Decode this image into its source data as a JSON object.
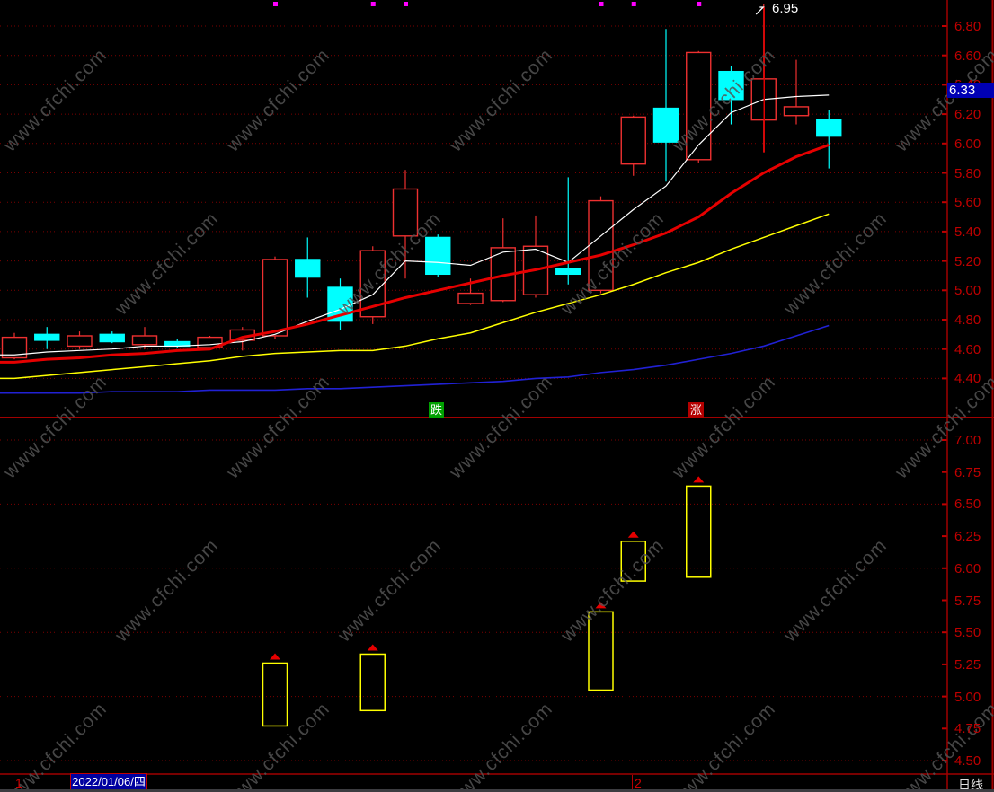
{
  "app": {
    "watermark_text": "www.cfchi.com",
    "statusbar": {
      "month_marker_1": "1",
      "date_label": "2022/01/06/四",
      "month_marker_2": "2",
      "period_label": "日线"
    },
    "divider": {
      "down_label": "跌",
      "up_label": "涨"
    }
  },
  "colors": {
    "background": "#000000",
    "grid": "#7C0000",
    "axis_line": "#A00000",
    "axis_text": "#C00000",
    "up": "#EE3030",
    "down": "#00FFFF",
    "ma_white": "#FFFFFF",
    "ma_red": "#E60000",
    "ma_yellow": "#FFFF00",
    "ma_blue": "#2121D4",
    "signal_bar": "#FFFF00",
    "signal_triangle": "#E60000",
    "signal_dot": "#FF00FF",
    "annotation_line": "#DD0000",
    "annotation_text": "#FFFFFF",
    "tag_bg": "#0000B4",
    "date_bg": "#0000A0",
    "down_badge_bg": "#00A000",
    "up_badge_bg": "#B40000"
  },
  "chart_data": {
    "type": "candlestick",
    "panels": [
      {
        "name": "price-panel",
        "y_axis": {
          "min": 4.4,
          "max": 6.8,
          "step": 0.2,
          "labels": [
            "6.80",
            "6.60",
            "6.40",
            "6.20",
            "6.00",
            "5.80",
            "5.60",
            "5.40",
            "5.20",
            "5.00",
            "4.80",
            "4.60",
            "4.40"
          ]
        },
        "candles": [
          {
            "o": 4.54,
            "h": 4.71,
            "l": 4.53,
            "c": 4.68,
            "dir": "up"
          },
          {
            "o": 4.7,
            "h": 4.75,
            "l": 4.6,
            "c": 4.66,
            "dir": "down"
          },
          {
            "o": 4.62,
            "h": 4.72,
            "l": 4.6,
            "c": 4.69,
            "dir": "up"
          },
          {
            "o": 4.7,
            "h": 4.72,
            "l": 4.64,
            "c": 4.65,
            "dir": "down"
          },
          {
            "o": 4.63,
            "h": 4.75,
            "l": 4.6,
            "c": 4.69,
            "dir": "up"
          },
          {
            "o": 4.65,
            "h": 4.67,
            "l": 4.61,
            "c": 4.62,
            "dir": "down"
          },
          {
            "o": 4.61,
            "h": 4.69,
            "l": 4.6,
            "c": 4.68,
            "dir": "up"
          },
          {
            "o": 4.66,
            "h": 4.75,
            "l": 4.59,
            "c": 4.73,
            "dir": "up"
          },
          {
            "o": 4.69,
            "h": 5.23,
            "l": 4.67,
            "c": 5.21,
            "dir": "up"
          },
          {
            "o": 5.21,
            "h": 5.36,
            "l": 4.95,
            "c": 5.09,
            "dir": "down"
          },
          {
            "o": 5.02,
            "h": 5.08,
            "l": 4.73,
            "c": 4.79,
            "dir": "down"
          },
          {
            "o": 4.82,
            "h": 5.3,
            "l": 4.77,
            "c": 5.27,
            "dir": "up"
          },
          {
            "o": 5.37,
            "h": 5.82,
            "l": 5.08,
            "c": 5.69,
            "dir": "up"
          },
          {
            "o": 5.36,
            "h": 5.38,
            "l": 5.09,
            "c": 5.11,
            "dir": "down"
          },
          {
            "o": 4.91,
            "h": 5.08,
            "l": 4.9,
            "c": 4.98,
            "dir": "up"
          },
          {
            "o": 4.93,
            "h": 5.49,
            "l": 4.92,
            "c": 5.29,
            "dir": "up"
          },
          {
            "o": 4.97,
            "h": 5.51,
            "l": 4.95,
            "c": 5.3,
            "dir": "up"
          },
          {
            "o": 5.15,
            "h": 5.77,
            "l": 5.04,
            "c": 5.11,
            "dir": "down"
          },
          {
            "o": 5.0,
            "h": 5.64,
            "l": 4.98,
            "c": 5.61,
            "dir": "up"
          },
          {
            "o": 5.86,
            "h": 6.19,
            "l": 5.78,
            "c": 6.18,
            "dir": "up"
          },
          {
            "o": 6.24,
            "h": 6.78,
            "l": 5.74,
            "c": 6.01,
            "dir": "down"
          },
          {
            "o": 5.89,
            "h": 6.63,
            "l": 5.87,
            "c": 6.62,
            "dir": "up"
          },
          {
            "o": 6.49,
            "h": 6.53,
            "l": 6.13,
            "c": 6.3,
            "dir": "down"
          },
          {
            "o": 6.16,
            "h": 6.95,
            "l": 5.94,
            "c": 6.44,
            "dir": "up"
          },
          {
            "o": 6.19,
            "h": 6.57,
            "l": 6.13,
            "c": 6.25,
            "dir": "up"
          },
          {
            "o": 6.16,
            "h": 6.23,
            "l": 5.83,
            "c": 6.05,
            "dir": "down"
          }
        ],
        "ma": {
          "white": [
            4.56,
            4.58,
            4.59,
            4.6,
            4.62,
            4.62,
            4.63,
            4.65,
            4.7,
            4.79,
            4.87,
            4.97,
            5.2,
            5.19,
            5.17,
            5.26,
            5.28,
            5.19,
            5.37,
            5.55,
            5.71,
            5.99,
            6.21,
            6.3,
            6.32,
            6.33
          ],
          "red": [
            4.51,
            4.53,
            4.54,
            4.56,
            4.57,
            4.59,
            4.6,
            4.68,
            4.72,
            4.77,
            4.83,
            4.89,
            4.95,
            5.0,
            5.05,
            5.1,
            5.14,
            5.19,
            5.24,
            5.31,
            5.39,
            5.5,
            5.66,
            5.8,
            5.91,
            5.99
          ],
          "yellow": [
            4.4,
            4.42,
            4.44,
            4.46,
            4.48,
            4.5,
            4.52,
            4.55,
            4.57,
            4.58,
            4.59,
            4.59,
            4.62,
            4.67,
            4.71,
            4.78,
            4.85,
            4.91,
            4.97,
            5.04,
            5.12,
            5.19,
            5.28,
            5.36,
            5.44,
            5.52
          ],
          "blue": [
            4.3,
            4.3,
            4.3,
            4.31,
            4.31,
            4.31,
            4.32,
            4.32,
            4.32,
            4.33,
            4.33,
            4.34,
            4.35,
            4.36,
            4.37,
            4.38,
            4.4,
            4.41,
            4.44,
            4.46,
            4.49,
            4.53,
            4.57,
            4.62,
            4.69,
            4.76
          ]
        },
        "signal_dot_indices": [
          8,
          11,
          12,
          18,
          19,
          21
        ],
        "annotation": {
          "index": 23,
          "price": 6.95,
          "label": "6.95"
        },
        "last_price_tag": {
          "value": 6.33,
          "label": "6.33"
        }
      },
      {
        "name": "signal-panel",
        "y_axis": {
          "min": 4.5,
          "max": 7.0,
          "step": 0.25,
          "grid_step": 0.5,
          "labels": [
            "7.00",
            "6.75",
            "6.50",
            "6.25",
            "6.00",
            "5.75",
            "5.50",
            "5.25",
            "5.00",
            "4.75",
            "4.50"
          ]
        },
        "bars": [
          {
            "index": 8,
            "top": 5.26,
            "bottom": 4.77
          },
          {
            "index": 11,
            "top": 5.33,
            "bottom": 4.89
          },
          {
            "index": 18,
            "top": 5.66,
            "bottom": 5.05
          },
          {
            "index": 19,
            "top": 6.21,
            "bottom": 5.9
          },
          {
            "index": 21,
            "top": 6.64,
            "bottom": 5.93
          }
        ]
      }
    ]
  }
}
